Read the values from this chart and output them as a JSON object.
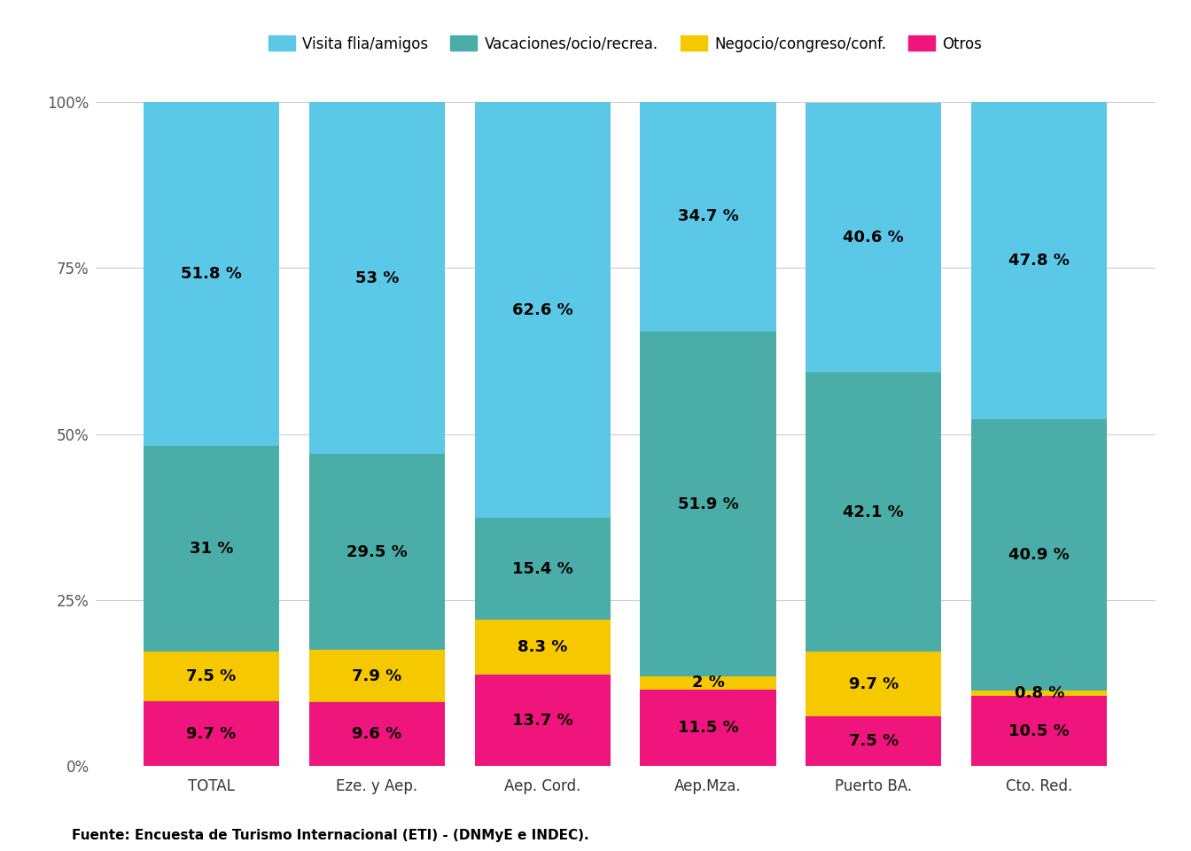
{
  "categories": [
    "TOTAL",
    "Eze. y Aep.",
    "Aep. Cord.",
    "Aep.Mza.",
    "Puerto BA.",
    "Cto. Red."
  ],
  "series": {
    "Otros": [
      9.7,
      9.6,
      13.7,
      11.5,
      7.5,
      10.5
    ],
    "Negocio/congreso/conf.": [
      7.5,
      7.9,
      8.3,
      2.0,
      9.7,
      0.8
    ],
    "Vacaciones/ocio/recrea.": [
      31.0,
      29.5,
      15.4,
      51.9,
      42.1,
      40.9
    ],
    "Visita flia/amigos": [
      51.8,
      53.0,
      62.6,
      34.7,
      40.6,
      47.8
    ]
  },
  "colors": {
    "Otros": "#F0157D",
    "Negocio/congreso/conf.": "#F5C800",
    "Vacaciones/ocio/recrea.": "#4AADA8",
    "Visita flia/amigos": "#5BC8E8"
  },
  "legend_labels": [
    "Visita flia/amigos",
    "Vacaciones/ocio/recrea.",
    "Negocio/congreso/conf.",
    "Otros"
  ],
  "ylabel_ticks": [
    "0%",
    "25%",
    "50%",
    "75%",
    "100%"
  ],
  "ylabel_values": [
    0,
    25,
    50,
    75,
    100
  ],
  "footnote": "Fuente: Encuesta de Turismo Internacional (ETI) - (DNMyE e INDEC).",
  "background_color": "#ffffff",
  "bar_width": 0.82,
  "label_fontsize": 13,
  "tick_fontsize": 12,
  "legend_fontsize": 12,
  "footnote_fontsize": 11
}
